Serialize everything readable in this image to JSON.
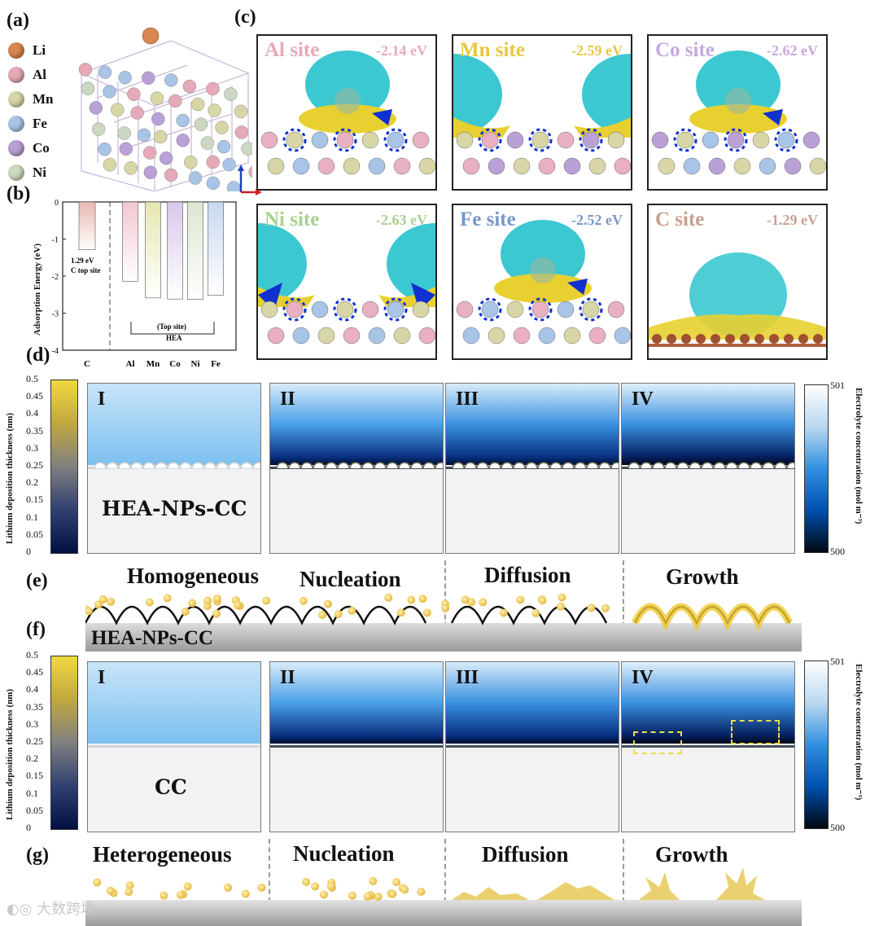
{
  "panels": {
    "a": "(a)",
    "b": "(b)",
    "c": "(c)",
    "d": "(d)",
    "e": "(e)",
    "f": "(f)",
    "g": "(g)"
  },
  "legend": [
    {
      "label": "Li",
      "color": "#d98650"
    },
    {
      "label": "Al",
      "color": "#e6a9b8"
    },
    {
      "label": "Mn",
      "color": "#d8d6a6"
    },
    {
      "label": "Fe",
      "color": "#a8c4e6"
    },
    {
      "label": "Co",
      "color": "#b9a0d6"
    },
    {
      "label": "Ni",
      "color": "#cdd8c2"
    }
  ],
  "chart_data": {
    "type": "bar",
    "ylabel": "Adsorption Energy (eV)",
    "ylim": [
      -4,
      0
    ],
    "yticks": [
      "0",
      "-1",
      "-2",
      "-3",
      "-4"
    ],
    "categories": [
      "C",
      "Al",
      "Mn",
      "Co",
      "Ni",
      "Fe"
    ],
    "values": [
      -1.29,
      -2.14,
      -2.59,
      -2.62,
      -2.63,
      -2.52
    ],
    "bar_colors": [
      "#e8b8b0",
      "#f2c8d0",
      "#e6e6b0",
      "#d8c8ea",
      "#dce6d0",
      "#c8d8f0"
    ],
    "annotation_c": "1.29 eV\nC top site",
    "annotation_c_line1": "1.29 eV",
    "annotation_c_line2": "C top site",
    "annotation_hea_line1": "(Top site)",
    "annotation_hea_line2": "HEA"
  },
  "sites": [
    {
      "name": "Al site",
      "ev": "-2.14 eV",
      "color": "#e8a8b8"
    },
    {
      "name": "Mn site",
      "ev": "-2.59 eV",
      "color": "#e8c840"
    },
    {
      "name": "Co site",
      "ev": "-2.62 eV",
      "color": "#c8a8e0"
    },
    {
      "name": "Ni site",
      "ev": "-2.63 eV",
      "color": "#a8d090"
    },
    {
      "name": "Fe site",
      "ev": "-2.52 eV",
      "color": "#7898c8"
    },
    {
      "name": "C site",
      "ev": "-1.29 eV",
      "color": "#c8a090"
    }
  ],
  "colorbar_left": {
    "label": "Lithium deposition thickness (nm)",
    "ticks": [
      "0.5",
      "0.45",
      "0.4",
      "0.35",
      "0.3",
      "0.25",
      "0.2",
      "0.15",
      "0.1",
      "0.05",
      "0"
    ]
  },
  "colorbar_right": {
    "label": "Electrolyte concentration (mol m⁻³)",
    "top": "501",
    "bottom": "500"
  },
  "sim_stages": [
    "I",
    "II",
    "III",
    "IV"
  ],
  "sim_d_label": "HEA-NPs-CC",
  "sim_f_label": "CC",
  "e_stages": [
    "Homogeneous",
    "Nucleation",
    "Diffusion",
    "Growth"
  ],
  "e_substrate": "HEA-NPs-CC",
  "g_stages": [
    "Heterogeneous",
    "Nucleation",
    "Diffusion",
    "Growth"
  ],
  "watermark": "大数跨境"
}
